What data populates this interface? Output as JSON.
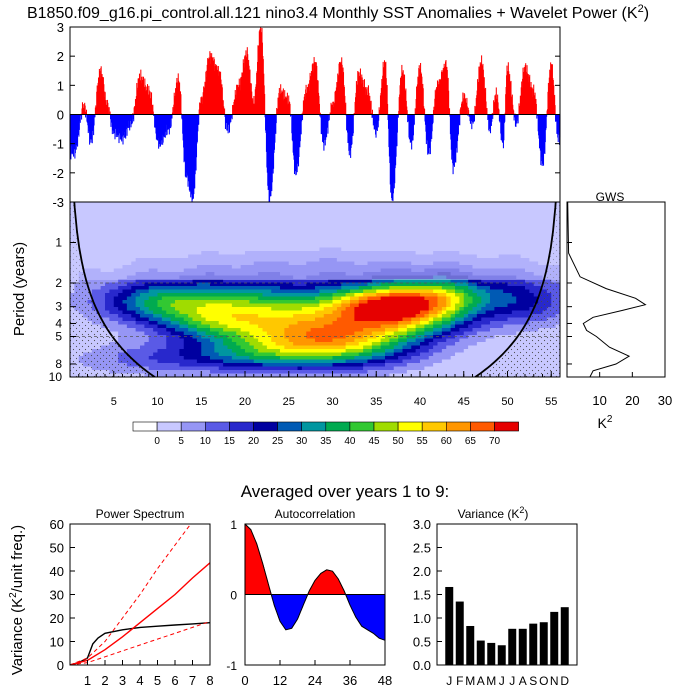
{
  "figure": {
    "title": "B1850.f09_g16.pi_control.all.121 nino3.4 Monthly SST Anomalies + Wavelet Power (K",
    "title_sup": "2",
    "title_close": ")",
    "subtitle": "Averaged over years 1 to 9:"
  },
  "colors": {
    "positive": "#ff0000",
    "negative": "#0000ff",
    "coi_fill": "#a8a8f5",
    "sig_line": "#000000"
  },
  "chart_data": [
    {
      "type": "area",
      "id": "sst_timeseries",
      "ylim": [
        -3,
        3
      ],
      "xlim": [
        0,
        56
      ],
      "yticks": [
        "3",
        "2",
        "1",
        "0",
        "-1",
        "-2",
        "-3"
      ],
      "baseline": 0,
      "positive_color": "#ff0000",
      "negative_color": "#0000ff",
      "peaks": [
        {
          "x": 0.5,
          "y": -1.3
        },
        {
          "x": 1.6,
          "y": 0.3
        },
        {
          "x": 2.4,
          "y": -0.9
        },
        {
          "x": 3.5,
          "y": 1.5
        },
        {
          "x": 4.3,
          "y": 0.3
        },
        {
          "x": 5.0,
          "y": -0.6
        },
        {
          "x": 6.0,
          "y": -0.8
        },
        {
          "x": 7.0,
          "y": -0.3
        },
        {
          "x": 8.0,
          "y": 1.3
        },
        {
          "x": 9.0,
          "y": 0.8
        },
        {
          "x": 10.2,
          "y": -1.0
        },
        {
          "x": 11.3,
          "y": -0.5
        },
        {
          "x": 12.4,
          "y": 1.2
        },
        {
          "x": 13.3,
          "y": -2.1
        },
        {
          "x": 14.0,
          "y": -2.9
        },
        {
          "x": 15.0,
          "y": 0.5
        },
        {
          "x": 16.0,
          "y": 2.0
        },
        {
          "x": 17.0,
          "y": 1.5
        },
        {
          "x": 18.0,
          "y": -0.5
        },
        {
          "x": 19.3,
          "y": 1.0
        },
        {
          "x": 20.2,
          "y": 2.1
        },
        {
          "x": 21.0,
          "y": 0.4
        },
        {
          "x": 21.8,
          "y": 3.0
        },
        {
          "x": 22.8,
          "y": -2.9
        },
        {
          "x": 24.0,
          "y": 0.8
        },
        {
          "x": 25.0,
          "y": 0.5
        },
        {
          "x": 25.8,
          "y": -2.0
        },
        {
          "x": 27.0,
          "y": 0.8
        },
        {
          "x": 28.0,
          "y": 1.8
        },
        {
          "x": 29.0,
          "y": -1.0
        },
        {
          "x": 30.0,
          "y": 0.3
        },
        {
          "x": 31.0,
          "y": 1.8
        },
        {
          "x": 32.0,
          "y": -1.3
        },
        {
          "x": 33.0,
          "y": 1.4
        },
        {
          "x": 34.0,
          "y": 0.8
        },
        {
          "x": 35.0,
          "y": -0.6
        },
        {
          "x": 36.0,
          "y": 1.8
        },
        {
          "x": 36.8,
          "y": -2.9
        },
        {
          "x": 38.0,
          "y": 1.5
        },
        {
          "x": 39.0,
          "y": -1.0
        },
        {
          "x": 40.0,
          "y": 1.6
        },
        {
          "x": 41.0,
          "y": -1.3
        },
        {
          "x": 42.0,
          "y": 1.0
        },
        {
          "x": 43.0,
          "y": 1.7
        },
        {
          "x": 43.8,
          "y": -1.8
        },
        {
          "x": 45.0,
          "y": 0.6
        },
        {
          "x": 46.0,
          "y": -0.3
        },
        {
          "x": 47.0,
          "y": 1.8
        },
        {
          "x": 48.0,
          "y": -0.5
        },
        {
          "x": 48.7,
          "y": 0.7
        },
        {
          "x": 49.5,
          "y": -1.0
        },
        {
          "x": 50.0,
          "y": 1.6
        },
        {
          "x": 51.0,
          "y": -0.3
        },
        {
          "x": 52.0,
          "y": 1.6
        },
        {
          "x": 53.0,
          "y": 0.8
        },
        {
          "x": 54.0,
          "y": -1.7
        },
        {
          "x": 55.0,
          "y": 1.7
        },
        {
          "x": 55.8,
          "y": -0.8
        }
      ]
    },
    {
      "type": "heatmap",
      "id": "wavelet_power",
      "ylabel": "Period (years)",
      "xlim": [
        0,
        56
      ],
      "xticks": [
        "5",
        "10",
        "15",
        "20",
        "25",
        "30",
        "35",
        "40",
        "45",
        "50",
        "55"
      ],
      "yticks": [
        "1",
        "2",
        "3",
        "4",
        "5",
        "8",
        "10"
      ],
      "ytick_values": [
        1,
        2,
        3,
        4,
        5,
        8,
        10
      ],
      "period_range": [
        0.5,
        10
      ],
      "levels": [
        0,
        5,
        10,
        15,
        20,
        25,
        30,
        35,
        40,
        45,
        50,
        55,
        60,
        65,
        70
      ],
      "level_labels": [
        "0",
        "5",
        "10",
        "15",
        "20",
        "25",
        "30",
        "35",
        "40",
        "45",
        "50",
        "55",
        "60",
        "65",
        "70"
      ],
      "level_colors": [
        "#ffffff",
        "#c8c8ff",
        "#9696f5",
        "#5a5ae6",
        "#2828cc",
        "#0000a0",
        "#005ab4",
        "#0096a0",
        "#00aa50",
        "#32c832",
        "#a0dc00",
        "#ffff00",
        "#ffc800",
        "#ff9600",
        "#ff5a00",
        "#e60000"
      ],
      "blobs": [
        {
          "t": 20,
          "p": 3.0,
          "amp": 38,
          "st": 8,
          "sp": 0.3
        },
        {
          "t": 36.5,
          "p": 2.9,
          "amp": 62,
          "st": 5,
          "sp": 0.25
        },
        {
          "t": 43,
          "p": 2.5,
          "amp": 30,
          "st": 4,
          "sp": 0.25
        },
        {
          "t": 10,
          "p": 2.7,
          "amp": 22,
          "st": 5,
          "sp": 0.25
        },
        {
          "t": 52,
          "p": 2.7,
          "amp": 20,
          "st": 4,
          "sp": 0.3
        },
        {
          "t": 26,
          "p": 5.0,
          "amp": 38,
          "st": 7,
          "sp": 0.3
        },
        {
          "t": 33,
          "p": 5.3,
          "amp": 28,
          "st": 6,
          "sp": 0.3
        },
        {
          "t": 21,
          "p": 7.0,
          "amp": 18,
          "st": 8,
          "sp": 0.2
        },
        {
          "t": 8,
          "p": 7.5,
          "amp": 8,
          "st": 6,
          "sp": 0.2
        },
        {
          "t": 30,
          "p": 1.5,
          "amp": 8,
          "st": 15,
          "sp": 0.25
        },
        {
          "t": 40,
          "p": 4.0,
          "amp": 14,
          "st": 5,
          "sp": 0.2
        },
        {
          "t": 16,
          "p": 4.0,
          "amp": 12,
          "st": 4,
          "sp": 0.2
        }
      ]
    },
    {
      "type": "line",
      "id": "global_wavelet_spectrum",
      "title": "GWS",
      "xlabel": "K",
      "xlabel_sup": "2",
      "xlim": [
        0,
        30
      ],
      "xticks": [
        "10",
        "20",
        "30"
      ],
      "points": [
        {
          "p": 0.5,
          "v": 0.2
        },
        {
          "p": 1.2,
          "v": 0.5
        },
        {
          "p": 1.8,
          "v": 4
        },
        {
          "p": 2.2,
          "v": 12
        },
        {
          "p": 2.6,
          "v": 21
        },
        {
          "p": 2.9,
          "v": 24
        },
        {
          "p": 3.2,
          "v": 17
        },
        {
          "p": 3.6,
          "v": 8
        },
        {
          "p": 4.0,
          "v": 5
        },
        {
          "p": 4.5,
          "v": 6
        },
        {
          "p": 5.0,
          "v": 9
        },
        {
          "p": 6.0,
          "v": 13
        },
        {
          "p": 7.0,
          "v": 19
        },
        {
          "p": 8.0,
          "v": 15
        },
        {
          "p": 9.0,
          "v": 8
        },
        {
          "p": 10.0,
          "v": 7
        }
      ]
    },
    {
      "type": "line",
      "id": "power_spectrum",
      "title": "Power Spectrum",
      "ylabel": "Variance (K",
      "ylabel_sup": "2",
      "ylabel_close": "/unit freq.)",
      "xlim": [
        0,
        8
      ],
      "ylim": [
        0,
        60
      ],
      "xticks": [
        "1",
        "2",
        "3",
        "4",
        "5",
        "6",
        "7",
        "8"
      ],
      "yticks": [
        "0",
        "10",
        "20",
        "30",
        "40",
        "50",
        "60"
      ],
      "series": [
        {
          "color": "#000000",
          "dash": "",
          "points": [
            [
              0,
              0
            ],
            [
              0.5,
              1
            ],
            [
              1,
              3
            ],
            [
              1.3,
              9
            ],
            [
              1.6,
              11.5
            ],
            [
              2,
              13.5
            ],
            [
              3,
              15
            ],
            [
              4,
              16
            ],
            [
              5,
              16.5
            ],
            [
              6,
              17
            ],
            [
              7,
              17.5
            ],
            [
              8,
              18
            ]
          ]
        },
        {
          "color": "#ff0000",
          "dash": "",
          "points": [
            [
              0,
              0
            ],
            [
              1,
              2
            ],
            [
              2,
              6.5
            ],
            [
              3,
              12
            ],
            [
              4,
              18
            ],
            [
              5,
              24
            ],
            [
              6,
              30
            ],
            [
              7,
              37
            ],
            [
              8,
              43.5
            ]
          ]
        },
        {
          "color": "#ff0000",
          "dash": "4,3",
          "points": [
            [
              0,
              0
            ],
            [
              1,
              3
            ],
            [
              2,
              10
            ],
            [
              3,
              20
            ],
            [
              4,
              30
            ],
            [
              5,
              41
            ],
            [
              6,
              51
            ],
            [
              7,
              61
            ]
          ]
        },
        {
          "color": "#ff0000",
          "dash": "4,3",
          "points": [
            [
              0,
              0
            ],
            [
              1,
              1
            ],
            [
              2,
              3.5
            ],
            [
              3,
              6
            ],
            [
              4,
              8.5
            ],
            [
              5,
              11
            ],
            [
              6,
              13.5
            ],
            [
              7,
              16
            ],
            [
              8,
              18.5
            ]
          ]
        }
      ]
    },
    {
      "type": "area",
      "id": "autocorrelation",
      "title": "Autocorrelation",
      "xlim": [
        0,
        48
      ],
      "ylim": [
        -1,
        1
      ],
      "xticks": [
        "0",
        "12",
        "24",
        "36",
        "48"
      ],
      "yticks": [
        "1",
        "0",
        "-1"
      ],
      "positive_color": "#ff0000",
      "negative_color": "#0000ff",
      "points": [
        [
          0,
          1.0
        ],
        [
          2,
          0.92
        ],
        [
          4,
          0.72
        ],
        [
          6,
          0.45
        ],
        [
          8,
          0.15
        ],
        [
          10,
          -0.15
        ],
        [
          12,
          -0.38
        ],
        [
          14,
          -0.5
        ],
        [
          16,
          -0.48
        ],
        [
          18,
          -0.35
        ],
        [
          20,
          -0.15
        ],
        [
          22,
          0.05
        ],
        [
          24,
          0.2
        ],
        [
          26,
          0.3
        ],
        [
          28,
          0.35
        ],
        [
          30,
          0.33
        ],
        [
          32,
          0.22
        ],
        [
          34,
          0.05
        ],
        [
          36,
          -0.15
        ],
        [
          38,
          -0.32
        ],
        [
          40,
          -0.45
        ],
        [
          42,
          -0.5
        ],
        [
          44,
          -0.55
        ],
        [
          46,
          -0.62
        ],
        [
          48,
          -0.65
        ]
      ]
    },
    {
      "type": "bar",
      "id": "monthly_variance",
      "title": "Variance (K",
      "title_sup": "2",
      "title_close": ")",
      "categories": [
        "J",
        "F",
        "M",
        "A",
        "M",
        "J",
        "J",
        "A",
        "S",
        "O",
        "N",
        "D"
      ],
      "values": [
        1.66,
        1.35,
        0.83,
        0.52,
        0.47,
        0.42,
        0.77,
        0.77,
        0.88,
        0.91,
        1.13,
        1.23
      ],
      "ylim": [
        0,
        3.0
      ],
      "yticks": [
        "0.0",
        "0.5",
        "1.0",
        "1.5",
        "2.0",
        "2.5",
        "3.0"
      ],
      "bar_color": "#000000"
    }
  ]
}
